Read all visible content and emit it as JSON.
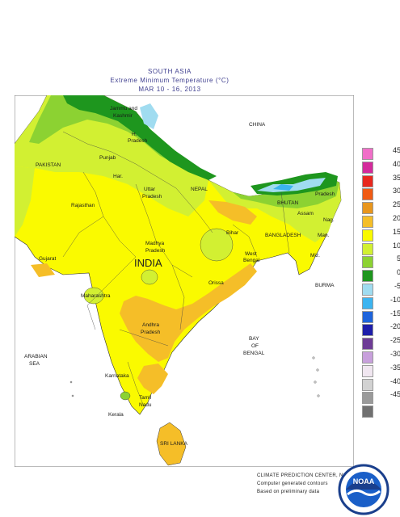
{
  "title": {
    "line1": "SOUTH ASIA",
    "line2": "Extreme Minimum Temperature (°C)",
    "line3": "MAR 10 - 16, 2013"
  },
  "labels": {
    "jammu": "Jammu and",
    "kashmir": "Kashmir",
    "china": "CHINA",
    "hp1": "H.",
    "hp2": "Pradesh",
    "pakistan": "PAKISTAN",
    "punjab": "Punjab",
    "har": "Har.",
    "uttar1": "Uttar",
    "uttar2": "Pradesh",
    "nepal": "NEPAL",
    "arunachal": "Pradesh",
    "bhutan": "BHUTAN",
    "assam": "Assam",
    "nag": "Nag.",
    "rajasthan": "Rajasthan",
    "bihar": "Bihar",
    "bangladesh": "BANGLADESH",
    "man": "Man.",
    "madhya1": "Madhya",
    "madhya2": "Pradesh",
    "gujarat": "Gujarat",
    "india": "INDIA",
    "wb1": "West",
    "wb2": "Bengal",
    "miz": "Miz.",
    "burma": "BURMA",
    "orissa": "Orissa",
    "maharashtra": "Maharashtra",
    "andhra1": "Andhra",
    "andhra2": "Pradesh",
    "bay1": "BAY",
    "bay2": "OF",
    "bay3": "BENGAL",
    "arabian1": "ARABIAN",
    "arabian2": "SEA",
    "karnataka": "Karnataka",
    "tamil1": "Tamil",
    "tamil2": "Nadu",
    "kerala": "Kerala",
    "srilanka": "SRI LANKA"
  },
  "legend": [
    {
      "value": "45",
      "color": "#f06ec8"
    },
    {
      "value": "40",
      "color": "#d42a9c"
    },
    {
      "value": "35",
      "color": "#e8281e"
    },
    {
      "value": "30",
      "color": "#f05a14"
    },
    {
      "value": "25",
      "color": "#e8961e"
    },
    {
      "value": "20",
      "color": "#f5be28"
    },
    {
      "value": "15",
      "color": "#fafa00"
    },
    {
      "value": "10",
      "color": "#d2f032"
    },
    {
      "value": "5",
      "color": "#8cd232"
    },
    {
      "value": "0",
      "color": "#1e961e"
    },
    {
      "value": "-5",
      "color": "#a0dcf0"
    },
    {
      "value": "-10",
      "color": "#3cb4f0"
    },
    {
      "value": "-15",
      "color": "#1e64dc"
    },
    {
      "value": "-20",
      "color": "#1e1eaa"
    },
    {
      "value": "-25",
      "color": "#6e3c96"
    },
    {
      "value": "-30",
      "color": "#c8a0dc"
    },
    {
      "value": "-35",
      "color": "#f0e6f0"
    },
    {
      "value": "-40",
      "color": "#d2d2d2"
    },
    {
      "value": "-45",
      "color": "#9a9a9a"
    },
    {
      "value": "",
      "color": "#707070"
    }
  ],
  "credit": {
    "line1": "CLIMATE PREDICTION CENTER, NOAA",
    "line2": "Computer generated contours",
    "line3": "Based on preliminary data"
  },
  "logo_text": "NOAA"
}
